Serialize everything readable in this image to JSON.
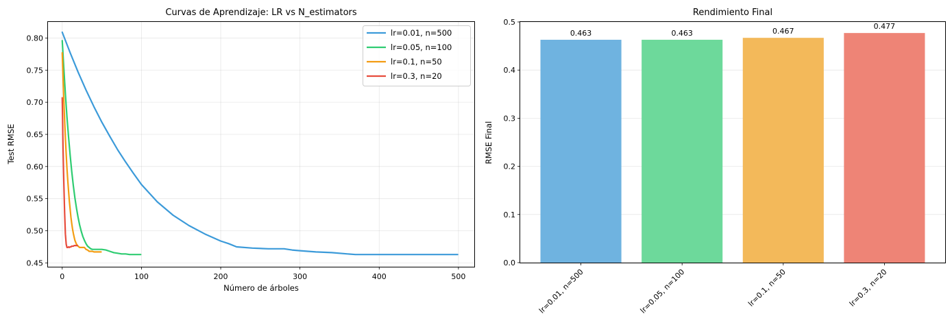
{
  "chart_data": [
    {
      "type": "line",
      "title": "Curvas de Aprendizaje: LR vs N_estimators",
      "xlabel": "Número de árboles",
      "ylabel": "Test RMSE",
      "xlim": [
        -18,
        520
      ],
      "ylim": [
        0.444,
        0.825
      ],
      "xticks": [
        0,
        100,
        200,
        300,
        400,
        500
      ],
      "yticks": [
        0.45,
        0.5,
        0.55,
        0.6,
        0.65,
        0.7,
        0.75,
        0.8
      ],
      "grid": true,
      "legend": "top-right",
      "series": [
        {
          "name": "lr=0.01, n=500",
          "color": "#3b9ad9",
          "x": [
            0,
            10,
            20,
            30,
            40,
            50,
            60,
            70,
            80,
            90,
            100,
            120,
            140,
            160,
            180,
            200,
            210,
            220,
            240,
            260,
            280,
            290,
            300,
            320,
            340,
            360,
            370,
            380,
            400,
            420,
            440,
            460,
            480,
            499
          ],
          "y": [
            0.809,
            0.777,
            0.747,
            0.719,
            0.693,
            0.669,
            0.647,
            0.626,
            0.607,
            0.589,
            0.572,
            0.545,
            0.524,
            0.508,
            0.495,
            0.484,
            0.48,
            0.475,
            0.473,
            0.472,
            0.472,
            0.47,
            0.469,
            0.467,
            0.466,
            0.464,
            0.463,
            0.463,
            0.463,
            0.463,
            0.463,
            0.463,
            0.463,
            0.463
          ]
        },
        {
          "name": "lr=0.05, n=100",
          "color": "#2ecc71",
          "x": [
            0,
            2,
            4,
            6,
            8,
            10,
            12,
            14,
            16,
            18,
            20,
            22,
            24,
            26,
            28,
            30,
            32,
            34,
            36,
            38,
            40,
            42,
            45,
            50,
            55,
            60,
            65,
            70,
            75,
            80,
            85,
            90,
            95,
            99
          ],
          "y": [
            0.796,
            0.753,
            0.713,
            0.677,
            0.645,
            0.617,
            0.592,
            0.57,
            0.551,
            0.535,
            0.521,
            0.509,
            0.499,
            0.491,
            0.485,
            0.48,
            0.476,
            0.474,
            0.472,
            0.471,
            0.471,
            0.471,
            0.471,
            0.471,
            0.47,
            0.468,
            0.466,
            0.465,
            0.464,
            0.464,
            0.463,
            0.463,
            0.463,
            0.463
          ]
        },
        {
          "name": "lr=0.1, n=50",
          "color": "#f39c12",
          "x": [
            0,
            1,
            2,
            3,
            4,
            5,
            6,
            7,
            8,
            9,
            10,
            11,
            12,
            13,
            14,
            15,
            16,
            18,
            20,
            22,
            24,
            26,
            28,
            30,
            32,
            34,
            36,
            38,
            40,
            42,
            44,
            46,
            48,
            49
          ],
          "y": [
            0.777,
            0.738,
            0.703,
            0.672,
            0.644,
            0.619,
            0.597,
            0.578,
            0.561,
            0.546,
            0.533,
            0.521,
            0.511,
            0.503,
            0.496,
            0.49,
            0.485,
            0.479,
            0.476,
            0.474,
            0.474,
            0.474,
            0.474,
            0.471,
            0.47,
            0.468,
            0.468,
            0.468,
            0.467,
            0.467,
            0.467,
            0.467,
            0.467,
            0.467
          ]
        },
        {
          "name": "lr=0.3, n=20",
          "color": "#e74c3c",
          "x": [
            0,
            1,
            2,
            3,
            4,
            5,
            6,
            7,
            8,
            9,
            10,
            11,
            12,
            13,
            14,
            15,
            16,
            17,
            18,
            19
          ],
          "y": [
            0.707,
            0.628,
            0.575,
            0.528,
            0.495,
            0.479,
            0.474,
            0.474,
            0.475,
            0.474,
            0.475,
            0.475,
            0.476,
            0.476,
            0.476,
            0.477,
            0.477,
            0.477,
            0.477,
            0.477
          ]
        }
      ]
    },
    {
      "type": "bar",
      "title": "Rendimiento Final",
      "xlabel": "",
      "ylabel": "RMSE Final",
      "ylim": [
        0,
        0.5
      ],
      "yticks": [
        0.0,
        0.1,
        0.2,
        0.3,
        0.4,
        0.5
      ],
      "grid": true,
      "categories": [
        "lr=0.01, n=500",
        "lr=0.05, n=100",
        "lr=0.1, n=50",
        "lr=0.3, n=20"
      ],
      "values": [
        0.463,
        0.463,
        0.467,
        0.477
      ],
      "data_labels": [
        "0.463",
        "0.463",
        "0.467",
        "0.477"
      ],
      "colors": [
        "#6fb3e0",
        "#6dd99b",
        "#f3b95a",
        "#ee8476"
      ]
    }
  ]
}
